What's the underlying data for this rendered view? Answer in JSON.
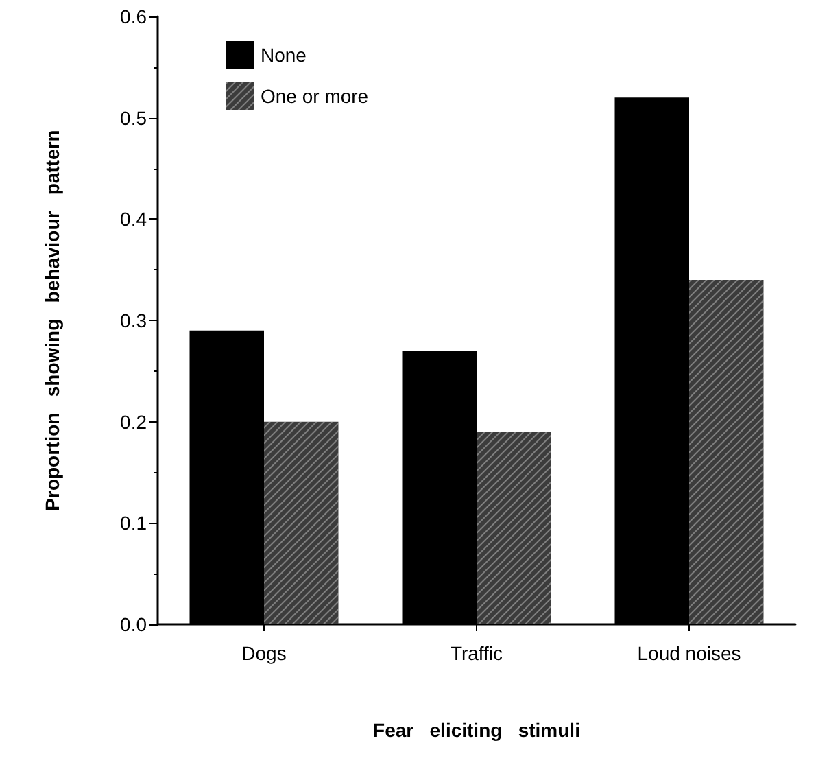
{
  "chart_data": {
    "type": "bar",
    "xlabel": "Fear   eliciting   stimuli",
    "ylabel": "Proportion   showing   behaviour   pattern",
    "categories": [
      "Dogs",
      "Traffic",
      "Loud noises"
    ],
    "series": [
      {
        "name": "None",
        "color": "#000000",
        "values": [
          0.29,
          0.27,
          0.52
        ]
      },
      {
        "name": "One or more",
        "color": "#3c3c3c",
        "values": [
          0.2,
          0.19,
          0.34
        ]
      }
    ],
    "ylim": [
      0,
      0.6
    ],
    "yticks": [
      {
        "value": 0,
        "label": "0.0"
      },
      0.1,
      0.2,
      0.3,
      0.4,
      0.5,
      0.6
    ],
    "grid": false,
    "legend": "top left"
  }
}
